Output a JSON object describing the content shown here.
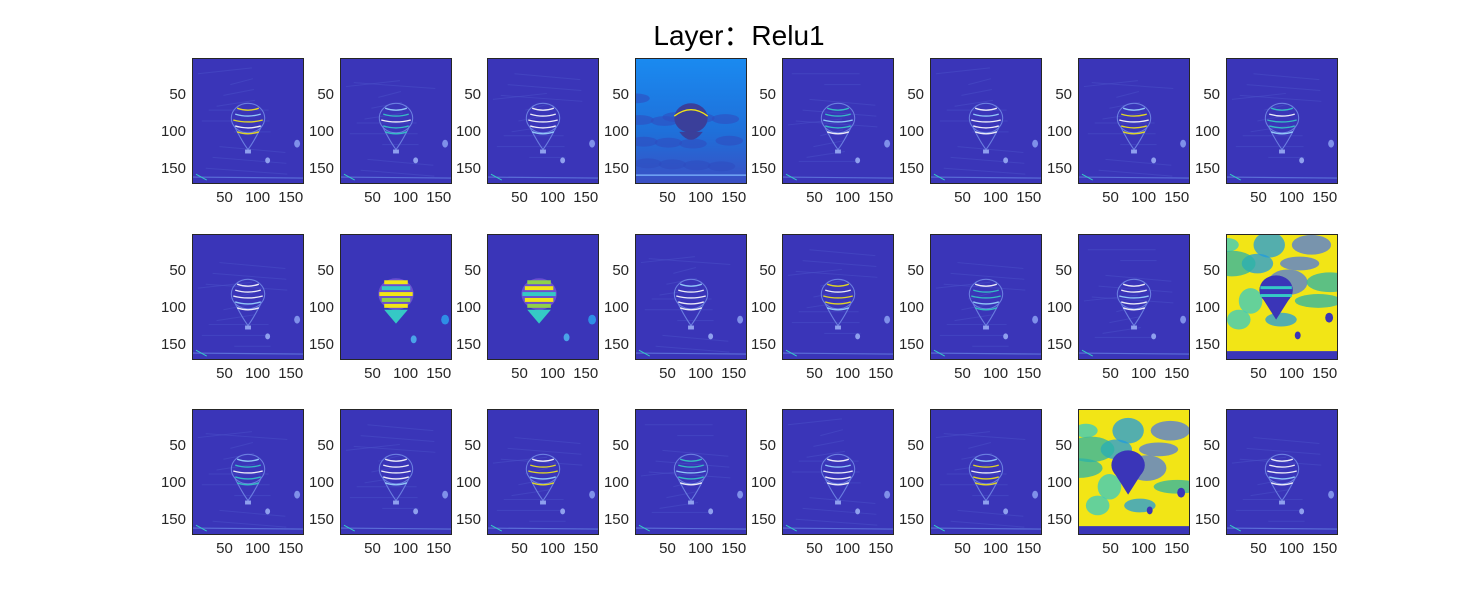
{
  "title": "Layer：Relu1",
  "chart_data": {
    "type": "heatmap",
    "title": "Layer：Relu1",
    "layout": {
      "rows": 3,
      "cols": 8
    },
    "xlabel": "",
    "ylabel": "",
    "xticks": [
      "50",
      "100",
      "150"
    ],
    "yticks": [
      "50",
      "100",
      "150"
    ],
    "x_tick_values": [
      50,
      100,
      150
    ],
    "y_tick_values": [
      50,
      100,
      150
    ],
    "xlim": [
      1,
      170
    ],
    "ylim": [
      1,
      170
    ],
    "colormap": "parula",
    "colors": {
      "background": "#3a35b8",
      "bright_bg": "#1f7bd6",
      "highlight_yellow": "#f2e516",
      "highlight_cyan": "#35c9c5",
      "highlight_green": "#8fd04a"
    },
    "channels": [
      {
        "index": 1,
        "style": "edges"
      },
      {
        "index": 2,
        "style": "edges"
      },
      {
        "index": 3,
        "style": "edges"
      },
      {
        "index": 4,
        "style": "bright-background"
      },
      {
        "index": 5,
        "style": "edges"
      },
      {
        "index": 6,
        "style": "edges"
      },
      {
        "index": 7,
        "style": "edges"
      },
      {
        "index": 8,
        "style": "edges"
      },
      {
        "index": 9,
        "style": "edges"
      },
      {
        "index": 10,
        "style": "balloon-filled"
      },
      {
        "index": 11,
        "style": "balloon-filled"
      },
      {
        "index": 12,
        "style": "edges"
      },
      {
        "index": 13,
        "style": "edges"
      },
      {
        "index": 14,
        "style": "edges"
      },
      {
        "index": 15,
        "style": "edges"
      },
      {
        "index": 16,
        "style": "sky-yellow"
      },
      {
        "index": 17,
        "style": "edges"
      },
      {
        "index": 18,
        "style": "edges"
      },
      {
        "index": 19,
        "style": "edges"
      },
      {
        "index": 20,
        "style": "edges"
      },
      {
        "index": 21,
        "style": "edges"
      },
      {
        "index": 22,
        "style": "edges"
      },
      {
        "index": 23,
        "style": "sky-yellow"
      },
      {
        "index": 24,
        "style": "edges"
      }
    ]
  }
}
